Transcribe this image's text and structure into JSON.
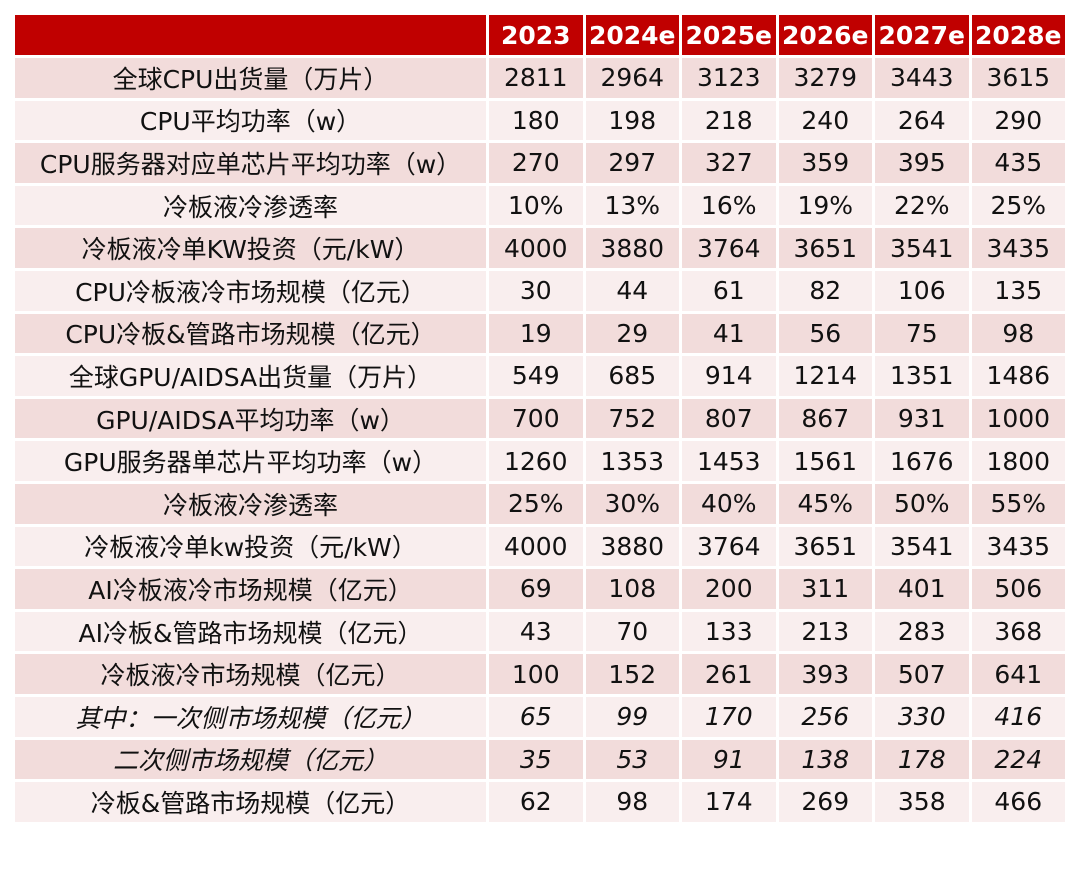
{
  "table": {
    "header": [
      "2023",
      "2024e",
      "2025e",
      "2026e",
      "2027e",
      "2028e"
    ],
    "rows": [
      {
        "label": "全球CPU出货量（万片）",
        "values": [
          "2811",
          "2964",
          "3123",
          "3279",
          "3443",
          "3615"
        ]
      },
      {
        "label": "CPU平均功率（w）",
        "values": [
          "180",
          "198",
          "218",
          "240",
          "264",
          "290"
        ]
      },
      {
        "label": "CPU服务器对应单芯片平均功率（w）",
        "values": [
          "270",
          "297",
          "327",
          "359",
          "395",
          "435"
        ]
      },
      {
        "label": "冷板液冷渗透率",
        "values": [
          "10%",
          "13%",
          "16%",
          "19%",
          "22%",
          "25%"
        ]
      },
      {
        "label": "冷板液冷单KW投资（元/kW）",
        "values": [
          "4000",
          "3880",
          "3764",
          "3651",
          "3541",
          "3435"
        ]
      },
      {
        "label": "CPU冷板液冷市场规模（亿元）",
        "values": [
          "30",
          "44",
          "61",
          "82",
          "106",
          "135"
        ]
      },
      {
        "label": "CPU冷板&管路市场规模（亿元）",
        "values": [
          "19",
          "29",
          "41",
          "56",
          "75",
          "98"
        ]
      },
      {
        "label": "全球GPU/AIDSA出货量（万片）",
        "values": [
          "549",
          "685",
          "914",
          "1214",
          "1351",
          "1486"
        ]
      },
      {
        "label": "GPU/AIDSA平均功率（w）",
        "values": [
          "700",
          "752",
          "807",
          "867",
          "931",
          "1000"
        ]
      },
      {
        "label": "GPU服务器单芯片平均功率（w）",
        "values": [
          "1260",
          "1353",
          "1453",
          "1561",
          "1676",
          "1800"
        ]
      },
      {
        "label": "冷板液冷渗透率",
        "values": [
          "25%",
          "30%",
          "40%",
          "45%",
          "50%",
          "55%"
        ]
      },
      {
        "label": "冷板液冷单kw投资（元/kW）",
        "values": [
          "4000",
          "3880",
          "3764",
          "3651",
          "3541",
          "3435"
        ]
      },
      {
        "label": "AI冷板液冷市场规模（亿元）",
        "values": [
          "69",
          "108",
          "200",
          "311",
          "401",
          "506"
        ]
      },
      {
        "label": "AI冷板&管路市场规模（亿元）",
        "values": [
          "43",
          "70",
          "133",
          "213",
          "283",
          "368"
        ]
      },
      {
        "label": "冷板液冷市场规模（亿元）",
        "values": [
          "100",
          "152",
          "261",
          "393",
          "507",
          "641"
        ]
      },
      {
        "label": "其中：一次侧市场规模（亿元）",
        "values": [
          "65",
          "99",
          "170",
          "256",
          "330",
          "416"
        ]
      },
      {
        "label": "二次侧市场规模（亿元）",
        "values": [
          "35",
          "53",
          "91",
          "138",
          "178",
          "224"
        ]
      },
      {
        "label": "冷板&管路市场规模（亿元）",
        "values": [
          "62",
          "98",
          "174",
          "269",
          "358",
          "466"
        ]
      }
    ]
  }
}
